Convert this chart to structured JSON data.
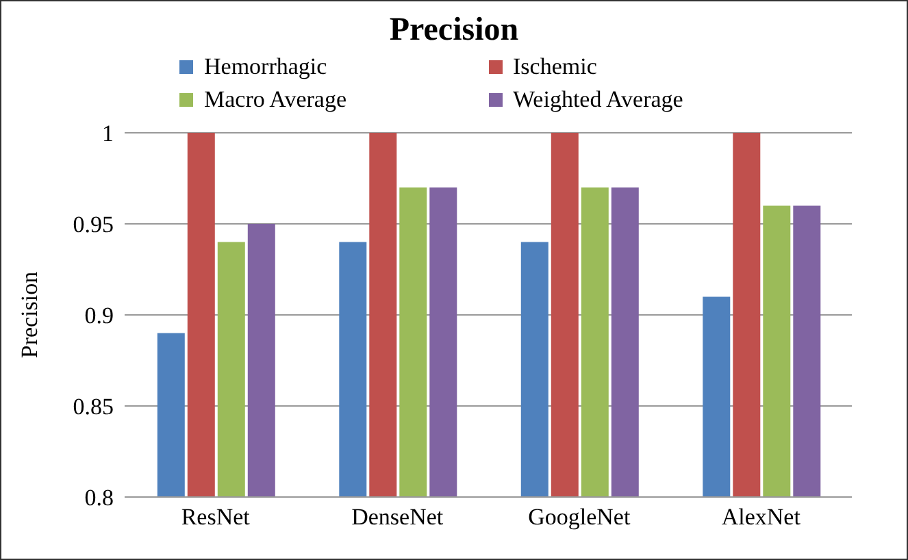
{
  "chart_data": {
    "type": "bar",
    "title": "Precision",
    "ylabel": "Precision",
    "categories": [
      "ResNet",
      "DenseNet",
      "GoogleNet",
      "AlexNet"
    ],
    "series": [
      {
        "name": "Hemorrhagic",
        "color": "#4f81bd",
        "values": [
          0.89,
          0.94,
          0.94,
          0.91
        ]
      },
      {
        "name": "Ischemic",
        "color": "#c0504d",
        "values": [
          1,
          1,
          1,
          1
        ]
      },
      {
        "name": "Macro Average",
        "color": "#9bbb59",
        "values": [
          0.94,
          0.97,
          0.97,
          0.96
        ]
      },
      {
        "name": "Weighted Average",
        "color": "#8064a2",
        "values": [
          0.95,
          0.97,
          0.97,
          0.96
        ]
      }
    ],
    "ylim": [
      0.8,
      1
    ],
    "yticks": [
      0.8,
      0.85,
      0.9,
      0.95,
      1
    ],
    "grid": "y",
    "legend": "top"
  }
}
